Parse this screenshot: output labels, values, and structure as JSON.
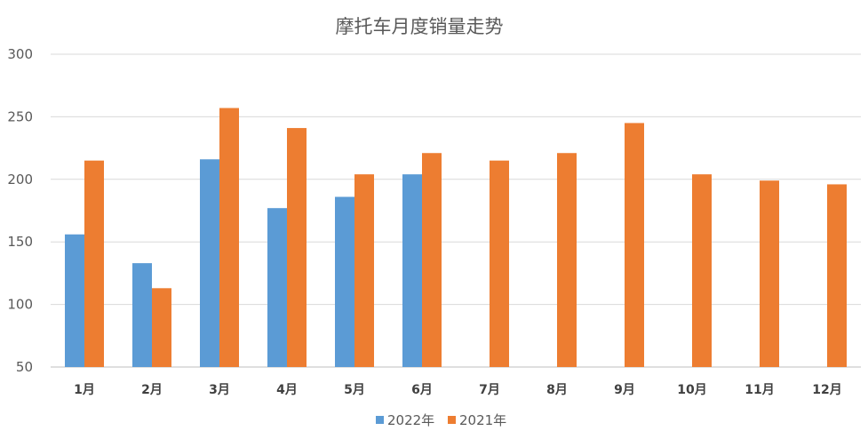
{
  "chart_data": {
    "type": "bar",
    "title": "摩托车月度销量走势",
    "categories": [
      "1月",
      "2月",
      "3月",
      "4月",
      "5月",
      "6月",
      "7月",
      "8月",
      "9月",
      "10月",
      "11月",
      "12月"
    ],
    "series": [
      {
        "name": "2022年",
        "color": "#5b9bd5",
        "values": [
          156,
          133,
          216,
          177,
          186,
          204,
          null,
          null,
          null,
          null,
          null,
          null
        ]
      },
      {
        "name": "2021年",
        "color": "#ed7d31",
        "values": [
          215,
          113,
          257,
          241,
          204,
          221,
          215,
          221,
          245,
          204,
          199,
          196
        ]
      }
    ],
    "ylim": [
      50,
      300
    ],
    "yticks": [
      50,
      100,
      150,
      200,
      250,
      300
    ],
    "grid": true,
    "legend": "bottom"
  }
}
